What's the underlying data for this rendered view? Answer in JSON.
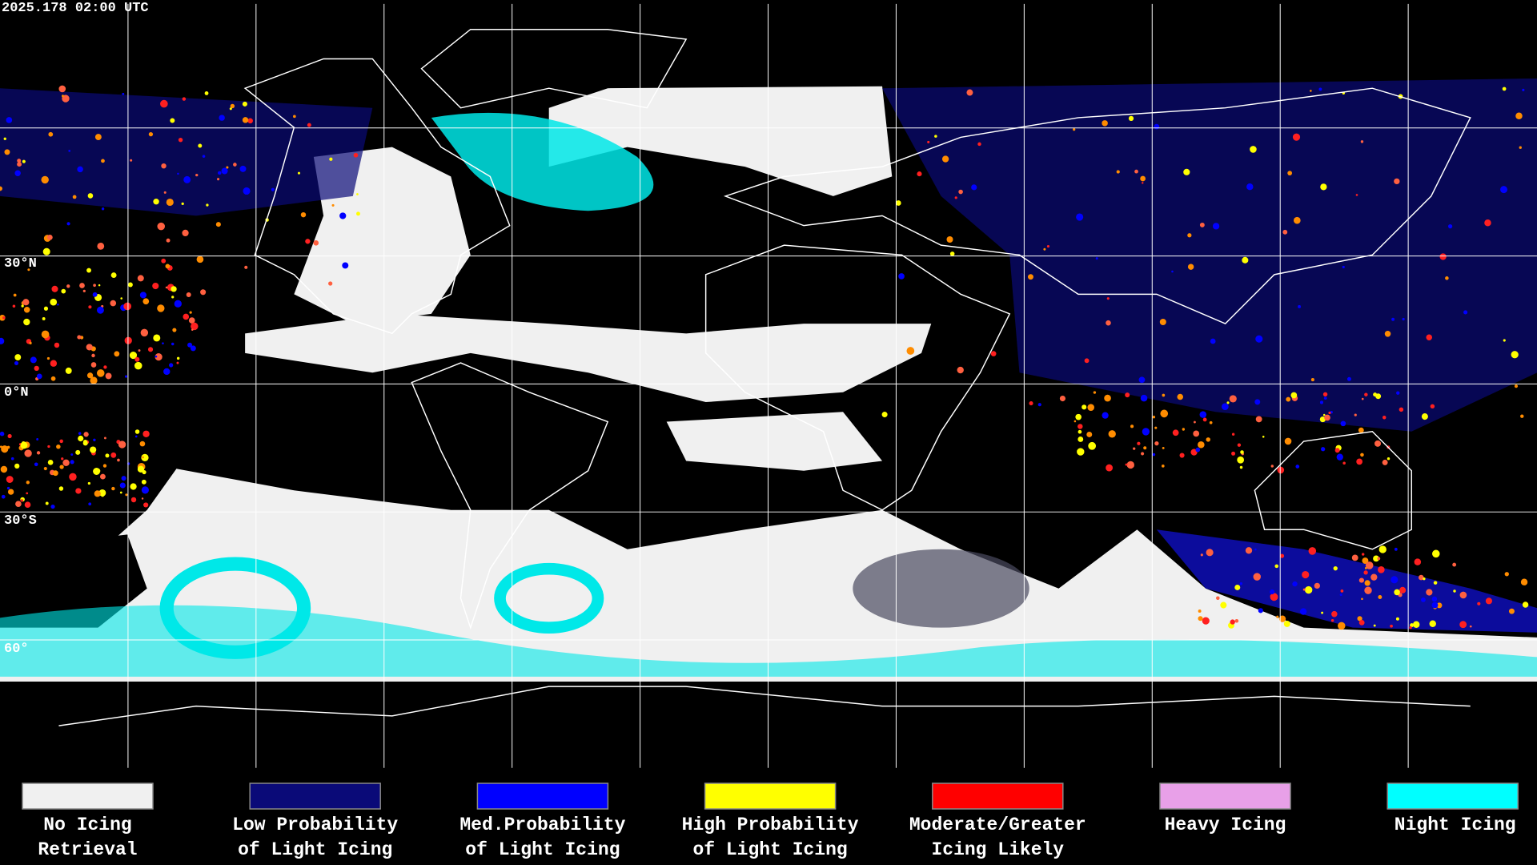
{
  "header": {
    "timestamp": "2025.178 02:00 UTC"
  },
  "map": {
    "latitude_labels": [
      "30°N",
      "0°N",
      "30°S",
      "60°"
    ]
  },
  "legend": {
    "items": [
      {
        "lines": [
          "No Icing",
          "Retrieval"
        ],
        "color": "#f0f0f0"
      },
      {
        "lines": [
          "Low Probability",
          "of Light Icing"
        ],
        "color": "#0a0a78"
      },
      {
        "lines": [
          "Med.Probability",
          "of Light Icing"
        ],
        "color": "#0000ff"
      },
      {
        "lines": [
          "High Probability",
          "of Light Icing"
        ],
        "color": "#ffff00"
      },
      {
        "lines": [
          "Moderate/Greater",
          "Icing Likely"
        ],
        "color": "#ff0000"
      },
      {
        "lines": [
          "Heavy Icing"
        ],
        "color": "#e8a0e8"
      },
      {
        "lines": [
          "Night Icing"
        ],
        "color": "#00ffff"
      }
    ]
  }
}
